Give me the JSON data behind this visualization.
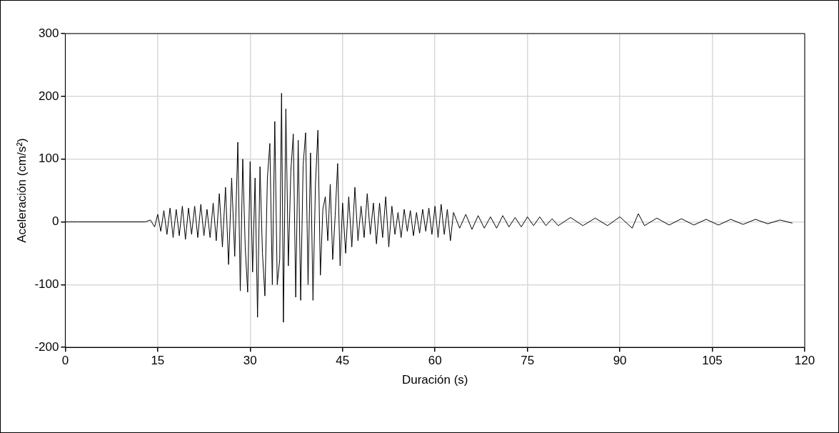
{
  "chart_data": {
    "type": "line",
    "xlabel": "Duración (s)",
    "ylabel": "Aceleración (cm/s²)",
    "xlim": [
      0,
      120
    ],
    "xticks": [
      0,
      15,
      30,
      45,
      60,
      75,
      90,
      105,
      120
    ],
    "ylim": [
      -200,
      300
    ],
    "yticks": [
      -200,
      -100,
      0,
      100,
      200,
      300
    ],
    "grid": true,
    "legend": false,
    "marker": "none",
    "line_style": "solid",
    "series": [
      {
        "color": "#000000",
        "x": [
          0,
          2,
          13,
          13.8,
          14.5,
          15,
          15.5,
          16,
          16.5,
          17,
          17.5,
          18,
          18.5,
          19,
          19.5,
          20,
          20.5,
          21,
          21.5,
          22,
          22.5,
          23,
          23.5,
          24,
          24.5,
          25,
          25.5,
          26,
          26.5,
          27,
          27.5,
          28,
          28.4,
          28.8,
          29.2,
          29.6,
          30,
          30.4,
          30.8,
          31.2,
          31.6,
          32,
          32.4,
          32.8,
          33.2,
          33.6,
          34,
          34.4,
          34.8,
          35.1,
          35.4,
          35.8,
          36.2,
          36.6,
          37,
          37.4,
          37.8,
          38.2,
          38.6,
          39,
          39.4,
          39.8,
          40.2,
          40.6,
          41,
          41.4,
          41.8,
          42.2,
          42.6,
          43,
          43.4,
          43.8,
          44.2,
          44.6,
          45,
          45.5,
          46,
          46.5,
          47,
          47.5,
          48,
          48.5,
          49,
          49.5,
          50,
          50.5,
          51,
          51.5,
          52,
          52.5,
          53,
          53.5,
          54,
          54.5,
          55,
          55.5,
          56,
          56.5,
          57,
          57.5,
          58,
          58.5,
          59,
          59.5,
          60,
          60.5,
          61,
          61.5,
          62,
          62.5,
          63,
          64,
          65,
          66,
          67,
          68,
          69,
          70,
          71,
          72,
          73,
          74,
          75,
          76,
          77,
          78,
          79,
          80,
          82,
          84,
          86,
          88,
          90,
          92,
          93,
          94,
          96,
          98,
          100,
          102,
          104,
          106,
          108,
          110,
          112,
          114,
          116,
          118
        ],
        "values": [
          0,
          0,
          0,
          3,
          -8,
          12,
          -15,
          18,
          -20,
          22,
          -25,
          20,
          -22,
          25,
          -28,
          22,
          -20,
          25,
          -25,
          28,
          -22,
          20,
          -25,
          30,
          -30,
          45,
          -40,
          55,
          -68,
          70,
          -55,
          127,
          -110,
          100,
          -40,
          -112,
          96,
          -80,
          70,
          -152,
          88,
          -50,
          -118,
          70,
          125,
          -100,
          160,
          -100,
          -60,
          205,
          -160,
          180,
          -70,
          80,
          140,
          -120,
          130,
          -125,
          90,
          142,
          -100,
          110,
          -125,
          60,
          146,
          -85,
          20,
          40,
          -30,
          60,
          -60,
          10,
          93,
          -70,
          30,
          -50,
          40,
          -40,
          55,
          -30,
          25,
          -25,
          45,
          -20,
          30,
          -35,
          30,
          -25,
          40,
          -40,
          25,
          -20,
          15,
          -25,
          20,
          -15,
          18,
          -22,
          15,
          -18,
          20,
          -15,
          22,
          -20,
          25,
          -25,
          28,
          -20,
          20,
          -30,
          15,
          -10,
          12,
          -12,
          10,
          -10,
          8,
          -10,
          10,
          -8,
          7,
          -8,
          8,
          -6,
          8,
          -6,
          5,
          -6,
          7,
          -6,
          6,
          -6,
          8,
          -10,
          13,
          -6,
          6,
          -5,
          5,
          -5,
          4,
          -5,
          4,
          -4,
          4,
          -3,
          3,
          -2
        ]
      }
    ]
  }
}
